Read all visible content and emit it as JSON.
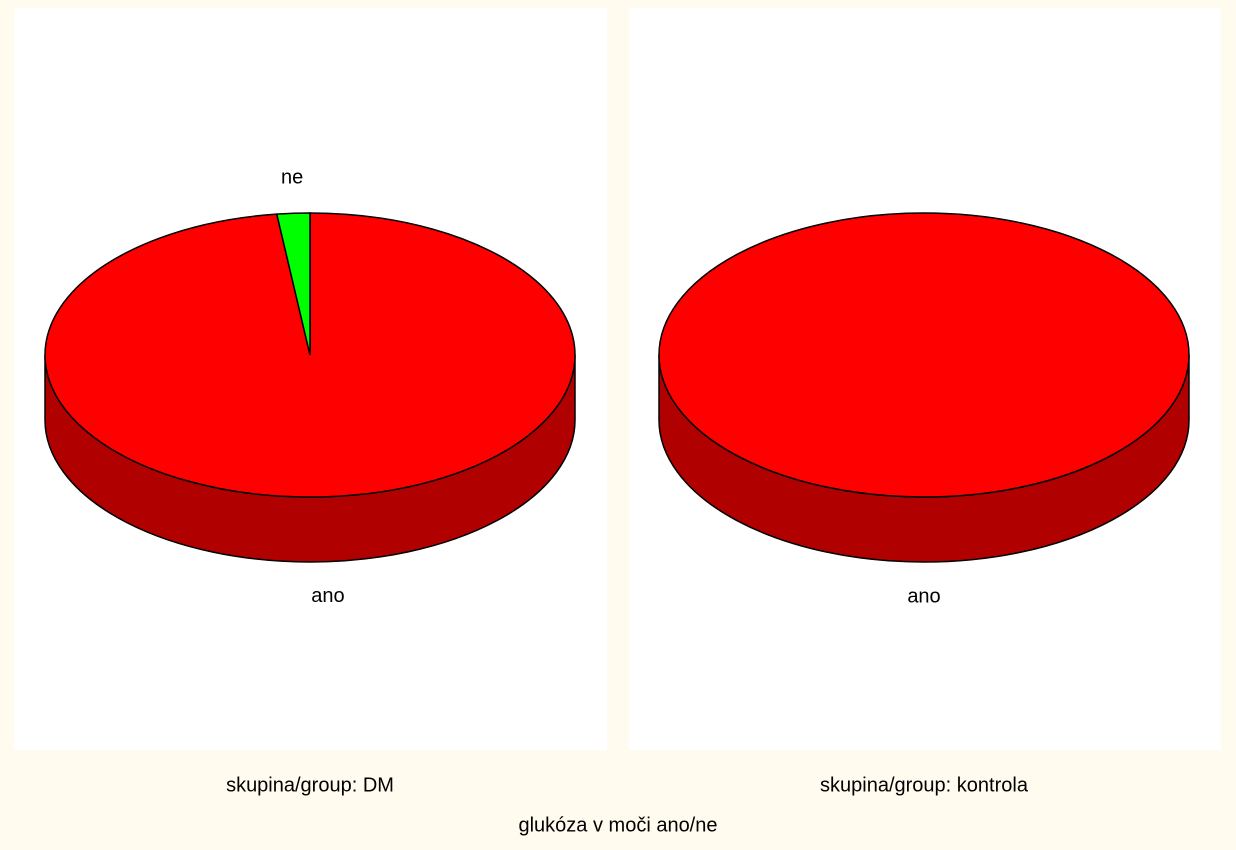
{
  "title": "glukóza v moči ano/ne",
  "chart_data": [
    {
      "type": "pie",
      "subtitle": "skupina/group: DM",
      "categories": [
        "ano",
        "ne"
      ],
      "values": [
        98,
        2
      ],
      "colors": [
        "#ff0000",
        "#00ff00"
      ],
      "side_colors": [
        "#b00000",
        "#00b000"
      ]
    },
    {
      "type": "pie",
      "subtitle": "skupina/group: kontrola",
      "categories": [
        "ano"
      ],
      "values": [
        100
      ],
      "colors": [
        "#ff0000"
      ],
      "side_colors": [
        "#b00000"
      ]
    }
  ]
}
